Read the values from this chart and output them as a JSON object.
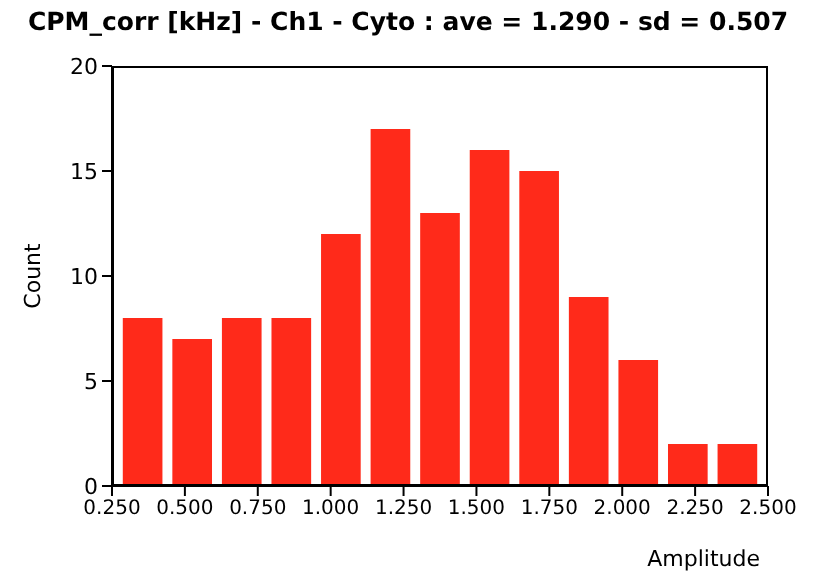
{
  "chart_data": {
    "type": "histogram",
    "title": "CPM_corr [kHz] - Ch1 - Cyto : ave = 1.290 - sd = 0.507",
    "xlabel": "Amplitude",
    "ylabel": "Count",
    "bins": [
      0.27,
      0.44,
      0.61,
      0.78,
      0.95,
      1.12,
      1.29,
      1.46,
      1.63,
      1.8,
      1.97,
      2.14,
      2.31,
      2.48
    ],
    "values": [
      8,
      7,
      8,
      8,
      12,
      17,
      13,
      16,
      15,
      9,
      6,
      2,
      2
    ],
    "color": "#ff2a1a",
    "xlim": [
      0.25,
      2.5
    ],
    "xticks": [
      {
        "value": 0.25,
        "label": "0.250"
      },
      {
        "value": 0.5,
        "label": "0.500"
      },
      {
        "value": 0.75,
        "label": "0.750"
      },
      {
        "value": 1,
        "label": "1.000"
      },
      {
        "value": 1.25,
        "label": "1.250"
      },
      {
        "value": 1.5,
        "label": "1.500"
      },
      {
        "value": 1.75,
        "label": "1.750"
      },
      {
        "value": 2,
        "label": "2.000"
      },
      {
        "value": 2.25,
        "label": "2.250"
      },
      {
        "value": 2.5,
        "label": "2.500"
      }
    ],
    "ylim": [
      0,
      20
    ],
    "yticks": [
      0,
      5,
      10,
      15,
      20
    ]
  }
}
